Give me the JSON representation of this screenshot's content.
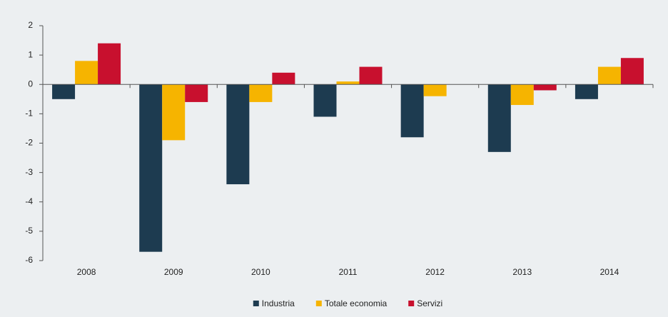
{
  "chart_data": {
    "type": "bar",
    "categories": [
      "2008",
      "2009",
      "2010",
      "2011",
      "2012",
      "2013",
      "2014"
    ],
    "series": [
      {
        "name": "Industria",
        "color": "#1d3b50",
        "values": [
          -0.5,
          -5.7,
          -3.4,
          -1.1,
          -1.8,
          -2.3,
          -0.5
        ]
      },
      {
        "name": "Totale economia",
        "color": "#f6b400",
        "values": [
          0.8,
          -1.9,
          -0.6,
          0.1,
          -0.4,
          -0.7,
          0.6
        ]
      },
      {
        "name": "Servizi",
        "color": "#c8102e",
        "values": [
          1.4,
          -0.6,
          0.4,
          0.6,
          0,
          -0.2,
          0.9
        ]
      }
    ],
    "ylim": [
      -6,
      2
    ],
    "yticks": [
      -6,
      -5,
      -4,
      -3,
      -2,
      -1,
      0,
      1,
      2
    ],
    "legend": "bottom"
  }
}
